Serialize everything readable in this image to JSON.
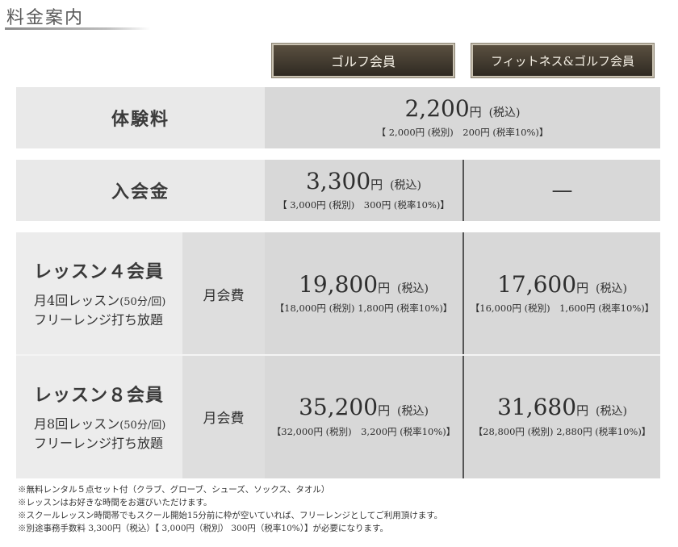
{
  "page_title": "料金案内",
  "plans": {
    "golf": "ゴルフ会員",
    "fitness": "フィットネス&ゴルフ会員"
  },
  "trial": {
    "label": "体験料",
    "price": "2,200",
    "yen": "円",
    "tax": "(税込)",
    "breakdown": "【 2,000円 (税別)　200円 (税率10%)】"
  },
  "admission": {
    "label": "入会金",
    "golf_price": "3,300",
    "yen": "円",
    "tax": "(税込)",
    "golf_breakdown": "【 3,000円 (税別)　300円 (税率10%)】",
    "fitness_value": "—"
  },
  "lesson4": {
    "name": "レッスン４会員",
    "sub1_pre": "月",
    "sub1_num": "4",
    "sub1_mid": "回レッスン",
    "sub1_small": "(50分/回)",
    "sub2": "フリーレンジ打ち放題",
    "fee_label": "月会費",
    "golf_price": "19,800",
    "golf_breakdown": "【18,000円 (税別) 1,800円 (税率10%)】",
    "fit_price": "17,600",
    "fit_breakdown": "【16,000円 (税別)　1,600円 (税率10%)】",
    "yen": "円",
    "tax": "(税込)"
  },
  "lesson8": {
    "name": "レッスン８会員",
    "sub1_pre": "月",
    "sub1_num": "8",
    "sub1_mid": "回レッスン",
    "sub1_small": "(50分/回)",
    "sub2": "フリーレンジ打ち放題",
    "fee_label": "月会費",
    "golf_price": "35,200",
    "golf_breakdown": "【32,000円 (税別)　3,200円 (税率10%)】",
    "fit_price": "31,680",
    "fit_breakdown": "【28,800円 (税別) 2,880円 (税率10%)】",
    "yen": "円",
    "tax": "(税込)"
  },
  "notes": [
    "※無料レンタル５点セット付（クラブ、グローブ、シューズ、ソックス、タオル）",
    "※レッスンはお好きな時間をお選びいただけます。",
    "※スクールレッスン時間帯でもスクール開始15分前に枠が空いていれば、フリーレンジとしてご利用頂けます。",
    "※別途事務手数料 3,300円（税込）【 3,000円（税別） 300円（税率10%）】が必要になります。"
  ]
}
